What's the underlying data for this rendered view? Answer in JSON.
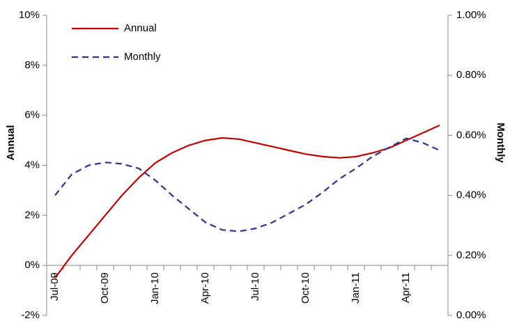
{
  "chart_data": {
    "type": "line",
    "y_label": "Annual",
    "y2_label": "Monthly",
    "categories": [
      "Jul-09",
      null,
      null,
      "Oct-09",
      null,
      null,
      "Jan-10",
      null,
      null,
      "Apr-10",
      null,
      null,
      "Jul-10",
      null,
      null,
      "Oct-10",
      null,
      null,
      "Jan-11",
      null,
      null,
      "Apr-11",
      null,
      null
    ],
    "series": [
      {
        "name": "Annual",
        "color": "#c00000",
        "dash": false,
        "values": [
          -0.5,
          0.4,
          1.2,
          2.0,
          2.8,
          3.5,
          4.1,
          4.5,
          4.8,
          5.0,
          5.1,
          5.05,
          4.9,
          4.75,
          4.6,
          4.45,
          4.35,
          4.3,
          4.35,
          4.5,
          4.7,
          5.0,
          5.3,
          5.6
        ]
      },
      {
        "name": "Monthly",
        "color": "#2e3192",
        "dash": true,
        "axis": "y2",
        "values": [
          0.4,
          0.47,
          0.5,
          0.51,
          0.505,
          0.49,
          0.45,
          0.4,
          0.355,
          0.31,
          0.285,
          0.28,
          0.29,
          0.31,
          0.34,
          0.37,
          0.41,
          0.455,
          0.49,
          0.53,
          0.56,
          0.59,
          0.575,
          0.55
        ]
      }
    ],
    "ylim": [
      -2,
      10
    ],
    "yticks": [
      {
        "value": -2,
        "label": "-2%"
      },
      {
        "value": 0,
        "label": "0%"
      },
      {
        "value": 2,
        "label": "2%"
      },
      {
        "value": 4,
        "label": "4%"
      },
      {
        "value": 6,
        "label": "6%"
      },
      {
        "value": 8,
        "label": "8%"
      },
      {
        "value": 10,
        "label": "10%"
      }
    ],
    "y2lim": [
      0,
      1
    ],
    "y2ticks": [
      {
        "value": 0,
        "label": "0.00%"
      },
      {
        "value": 0.2,
        "label": "0.20%"
      },
      {
        "value": 0.4,
        "label": "0.40%"
      },
      {
        "value": 0.6,
        "label": "0.60%"
      },
      {
        "value": 0.8,
        "label": "0.80%"
      },
      {
        "value": 1,
        "label": "1.00%"
      }
    ],
    "legend": "top-left",
    "grid": false
  }
}
